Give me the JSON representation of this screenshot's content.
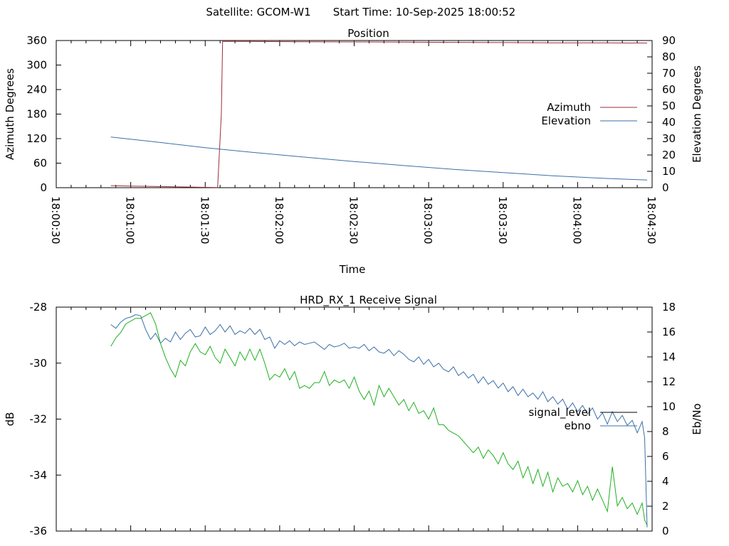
{
  "header": {
    "satellite": "Satellite: GCOM-W1",
    "start_time": "Start Time: 10-Sep-2025 18:00:52"
  },
  "chart_data": [
    {
      "type": "line",
      "title": "Position",
      "xlabel": "Time",
      "ylabel": "Azimuth Degrees",
      "y2label": "Elevation Degrees",
      "x_ticks": [
        "18:00:30",
        "18:01:00",
        "18:01:30",
        "18:02:00",
        "18:02:30",
        "18:03:00",
        "18:03:30",
        "18:04:00",
        "18:04:30"
      ],
      "xlim_seconds_after_1800": [
        30,
        270
      ],
      "ylim": [
        0,
        360
      ],
      "y_ticks": [
        0,
        60,
        120,
        180,
        240,
        300,
        360
      ],
      "y2lim": [
        0,
        90
      ],
      "y2_ticks": [
        0,
        10,
        20,
        30,
        40,
        50,
        60,
        70,
        80,
        90
      ],
      "legend_position": "right",
      "series": [
        {
          "name": "Azimuth",
          "axis": "left",
          "color": "#9b2d3b",
          "x": [
            52,
            60,
            70,
            80,
            88,
            95,
            96.5,
            97,
            99,
            110,
            130,
            150,
            170,
            190,
            210,
            230,
            250,
            268
          ],
          "y": [
            5,
            4,
            3,
            2,
            1,
            0.5,
            180,
            358,
            358,
            357.5,
            357,
            356.5,
            356,
            355.5,
            355,
            354.5,
            354.2,
            354
          ]
        },
        {
          "name": "Elevation",
          "axis": "right",
          "color": "#3b6fa8",
          "x": [
            52,
            70,
            90,
            110,
            130,
            150,
            170,
            190,
            210,
            230,
            250,
            268
          ],
          "y": [
            31,
            28,
            24.5,
            21.5,
            18.7,
            16,
            13.5,
            11.2,
            9.2,
            7.3,
            5.8,
            4.7
          ]
        }
      ]
    },
    {
      "type": "line",
      "title": "HRD_RX_1 Receive Signal",
      "ylabel": "dB",
      "y2label": "Eb/No",
      "xlim_seconds_after_1800": [
        30,
        270
      ],
      "ylim": [
        -36,
        -28
      ],
      "y_ticks": [
        -36,
        -34,
        -32,
        -30,
        -28
      ],
      "y2lim": [
        0,
        18
      ],
      "y2_ticks": [
        0,
        2,
        4,
        6,
        8,
        10,
        12,
        14,
        16,
        18
      ],
      "legend_position": "right",
      "series": [
        {
          "name": "signal_level",
          "axis": "left",
          "color": "#000000",
          "x": [],
          "y": []
        },
        {
          "name": "ebno",
          "axis": "right",
          "color": "#3b6fa8",
          "x": [
            52,
            54,
            56,
            58,
            60,
            62,
            64,
            66,
            68,
            70,
            72,
            74,
            76,
            78,
            80,
            82,
            84,
            86,
            88,
            90,
            92,
            94,
            96,
            98,
            100,
            102,
            104,
            106,
            108,
            110,
            112,
            114,
            116,
            118,
            120,
            122,
            124,
            126,
            128,
            130,
            132,
            134,
            136,
            138,
            140,
            142,
            144,
            146,
            148,
            150,
            152,
            154,
            156,
            158,
            160,
            162,
            164,
            166,
            168,
            170,
            172,
            174,
            176,
            178,
            180,
            182,
            184,
            186,
            188,
            190,
            192,
            194,
            196,
            198,
            200,
            202,
            204,
            206,
            208,
            210,
            212,
            214,
            216,
            218,
            220,
            222,
            224,
            226,
            228,
            230,
            232,
            234,
            236,
            238,
            240,
            242,
            244,
            246,
            248,
            250,
            252,
            254,
            256,
            258,
            260,
            262,
            264,
            266,
            267,
            268
          ],
          "y": [
            16.6,
            16.3,
            16.8,
            17.1,
            17.2,
            17.4,
            17.3,
            16.2,
            15.4,
            15.9,
            15.1,
            15.5,
            15.2,
            16.0,
            15.4,
            15.9,
            16.2,
            15.6,
            15.7,
            16.4,
            15.8,
            16.1,
            16.6,
            16.0,
            16.5,
            15.8,
            16.1,
            15.9,
            16.3,
            15.8,
            16.2,
            15.4,
            15.6,
            14.7,
            15.3,
            15.0,
            15.3,
            14.9,
            15.2,
            15.0,
            15.1,
            15.2,
            14.9,
            14.6,
            15.0,
            14.8,
            14.9,
            15.1,
            14.7,
            14.8,
            14.7,
            15.0,
            14.5,
            14.8,
            14.4,
            14.3,
            14.6,
            14.1,
            14.5,
            14.2,
            13.8,
            13.6,
            14.0,
            13.4,
            13.8,
            13.2,
            13.5,
            13.0,
            12.8,
            13.2,
            12.5,
            12.8,
            12.3,
            12.6,
            11.9,
            12.4,
            11.8,
            12.1,
            11.5,
            11.9,
            11.2,
            11.6,
            10.9,
            11.4,
            10.8,
            11.1,
            10.6,
            11.2,
            10.4,
            10.8,
            10.2,
            10.6,
            9.8,
            10.3,
            9.6,
            10.1,
            9.4,
            9.9,
            9.0,
            9.5,
            8.6,
            9.6,
            8.8,
            9.3,
            8.5,
            8.9,
            7.9,
            8.8,
            7.5,
            0.3
          ]
        },
        {
          "name": "",
          "axis": "left",
          "color": "#1fb01f",
          "x": [
            52,
            54,
            56,
            58,
            60,
            62,
            64,
            66,
            68,
            70,
            72,
            74,
            76,
            78,
            80,
            82,
            84,
            86,
            88,
            90,
            92,
            94,
            96,
            98,
            100,
            102,
            104,
            106,
            108,
            110,
            112,
            114,
            116,
            118,
            120,
            122,
            124,
            126,
            128,
            130,
            132,
            134,
            136,
            138,
            140,
            142,
            144,
            146,
            148,
            150,
            152,
            154,
            156,
            158,
            160,
            162,
            164,
            166,
            168,
            170,
            172,
            174,
            176,
            178,
            180,
            182,
            184,
            186,
            188,
            190,
            192,
            194,
            196,
            198,
            200,
            202,
            204,
            206,
            208,
            210,
            212,
            214,
            216,
            218,
            220,
            222,
            224,
            226,
            228,
            230,
            232,
            234,
            236,
            238,
            240,
            242,
            244,
            246,
            248,
            250,
            252,
            254,
            256,
            258,
            260,
            262,
            264,
            266,
            267,
            268
          ],
          "y": [
            -29.4,
            -29.1,
            -28.9,
            -28.6,
            -28.5,
            -28.4,
            -28.4,
            -28.3,
            -28.2,
            -28.6,
            -29.3,
            -29.8,
            -30.2,
            -30.5,
            -29.9,
            -30.1,
            -29.6,
            -29.3,
            -29.6,
            -29.7,
            -29.4,
            -29.8,
            -30.0,
            -29.5,
            -29.8,
            -30.1,
            -29.6,
            -29.9,
            -29.5,
            -29.9,
            -29.5,
            -30.0,
            -30.6,
            -30.4,
            -30.5,
            -30.2,
            -30.6,
            -30.3,
            -30.9,
            -30.8,
            -30.9,
            -30.7,
            -30.7,
            -30.3,
            -30.8,
            -30.6,
            -30.7,
            -30.6,
            -30.9,
            -30.5,
            -31.0,
            -31.3,
            -31.0,
            -31.5,
            -30.8,
            -31.2,
            -30.9,
            -31.2,
            -31.5,
            -31.3,
            -31.7,
            -31.4,
            -31.8,
            -31.7,
            -32.0,
            -31.6,
            -32.2,
            -32.2,
            -32.4,
            -32.5,
            -32.6,
            -32.8,
            -33.0,
            -33.2,
            -33.0,
            -33.4,
            -33.1,
            -33.3,
            -33.6,
            -33.2,
            -33.6,
            -33.8,
            -33.5,
            -34.1,
            -33.7,
            -34.3,
            -33.8,
            -34.4,
            -33.9,
            -34.6,
            -34.1,
            -34.4,
            -34.3,
            -34.6,
            -34.2,
            -34.7,
            -34.4,
            -34.9,
            -34.5,
            -34.9,
            -35.3,
            -33.7,
            -35.1,
            -34.8,
            -35.2,
            -35.0,
            -35.4,
            -35.0,
            -35.6,
            -35.8
          ]
        }
      ]
    }
  ]
}
